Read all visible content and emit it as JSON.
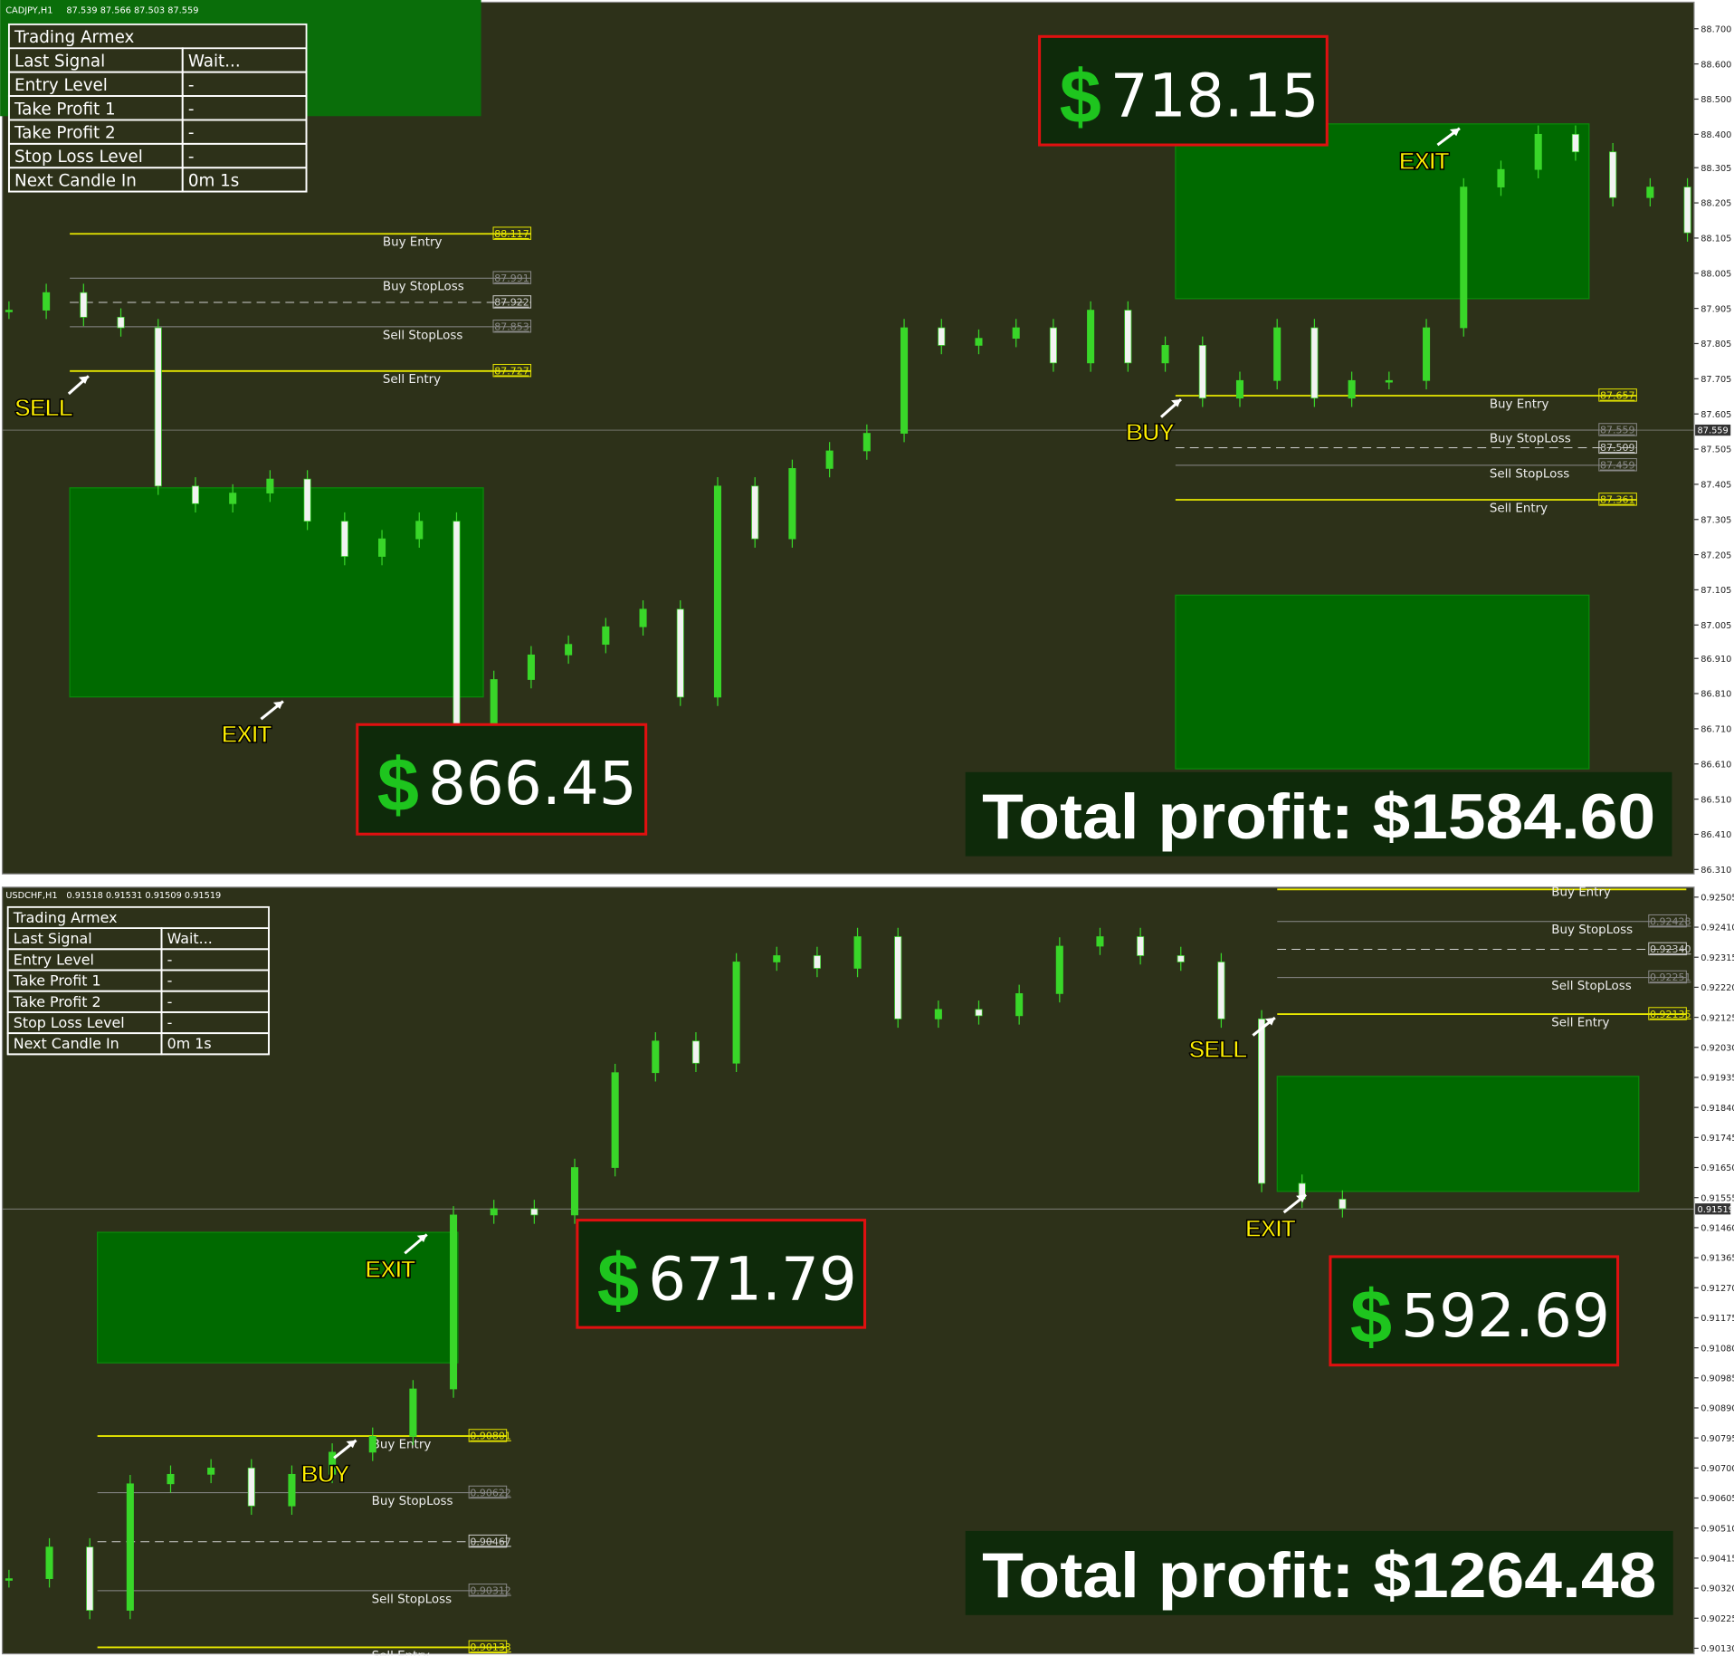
{
  "panels": [
    {
      "header": "CADJPY,H1",
      "ohlc": "87.539 87.566 87.503 87.559",
      "table": {
        "title": "Trading Armex",
        "rows": [
          [
            "Last Signal",
            "Wait..."
          ],
          [
            "Entry Level",
            "-"
          ],
          [
            "Take Profit 1",
            "-"
          ],
          [
            "Take Profit 2",
            "-"
          ],
          [
            "Stop Loss Level",
            "-"
          ],
          [
            "Next Candle In",
            "0m 1s"
          ]
        ]
      },
      "ylim": [
        86.31,
        88.7
      ],
      "price_axis": [
        "88.700",
        "88.600",
        "88.500",
        "88.400",
        "88.305",
        "88.205",
        "88.105",
        "88.005",
        "87.905",
        "87.805",
        "87.705",
        "87.605",
        "87.505",
        "87.405",
        "87.305",
        "87.205",
        "87.105",
        "87.005",
        "86.910",
        "86.810",
        "86.710",
        "86.610",
        "86.510",
        "86.410",
        "86.310"
      ],
      "current_price": "87.559",
      "level_groups": [
        [
          {
            "name": "Buy Entry",
            "price": "88.117",
            "kind": "entry"
          },
          {
            "name": "Buy StopLoss",
            "price": "87.991",
            "kind": "stoploss"
          },
          {
            "price": "87.922",
            "kind": "mid"
          },
          {
            "name": "Sell StopLoss",
            "price": "87.853",
            "kind": "stoploss"
          },
          {
            "name": "Sell Entry",
            "price": "87.727",
            "kind": "entry"
          }
        ],
        [
          {
            "name": "Buy Entry",
            "price": "87.657",
            "kind": "entry"
          },
          {
            "name": "Buy StopLoss",
            "price": "87.559",
            "kind": "stoploss"
          },
          {
            "price": "87.509",
            "kind": "mid"
          },
          {
            "name": "Sell StopLoss",
            "price": "87.459",
            "kind": "stoploss"
          },
          {
            "name": "Sell Entry",
            "price": "87.361",
            "kind": "entry"
          }
        ]
      ],
      "signals": [
        "SELL",
        "EXIT",
        "BUY",
        "EXIT"
      ],
      "currency": "$",
      "profits": [
        "718.15",
        "866.45"
      ],
      "total": "Total profit: $1584.60",
      "closes": [
        87.9,
        87.95,
        87.88,
        87.85,
        87.4,
        87.35,
        87.38,
        87.42,
        87.3,
        87.2,
        87.25,
        87.3,
        86.6,
        86.85,
        86.92,
        86.95,
        87.0,
        87.05,
        86.8,
        87.4,
        87.25,
        87.45,
        87.5,
        87.55,
        87.85,
        87.8,
        87.82,
        87.85,
        87.75,
        87.9,
        87.75,
        87.8,
        87.65,
        87.7,
        87.85,
        87.65,
        87.7,
        87.7,
        87.85,
        88.25,
        88.3,
        88.4,
        88.35,
        88.22,
        88.25,
        88.12
      ]
    },
    {
      "header": "USDCHF,H1",
      "ohlc": "0.91518 0.91531 0.91509 0.91519",
      "table": {
        "title": "Trading Armex",
        "rows": [
          [
            "Last Signal",
            "Wait..."
          ],
          [
            "Entry Level",
            "-"
          ],
          [
            "Take Profit 1",
            "-"
          ],
          [
            "Take Profit 2",
            "-"
          ],
          [
            "Stop Loss Level",
            "-"
          ],
          [
            "Next Candle In",
            "0m 1s"
          ]
        ]
      },
      "ylim": [
        0.9013,
        0.92505
      ],
      "price_axis": [
        "0.92505",
        "0.92410",
        "0.92315",
        "0.92220",
        "0.92125",
        "0.92030",
        "0.91935",
        "0.91840",
        "0.91745",
        "0.91650",
        "0.91555",
        "0.91460",
        "0.91365",
        "0.91270",
        "0.91175",
        "0.91080",
        "0.90985",
        "0.90890",
        "0.90795",
        "0.90700",
        "0.90605",
        "0.90510",
        "0.90415",
        "0.90320",
        "0.90225",
        "0.90130"
      ],
      "current_price": "0.91519",
      "level_groups": [
        [
          {
            "name": "Buy Entry",
            "price": "0.90801",
            "kind": "entry"
          },
          {
            "name": "Buy StopLoss",
            "price": "0.90622",
            "kind": "stoploss"
          },
          {
            "price": "0.90467",
            "kind": "mid"
          },
          {
            "name": "Sell StopLoss",
            "price": "0.90312",
            "kind": "stoploss"
          },
          {
            "name": "Sell Entry",
            "price": "0.90133",
            "kind": "entry"
          }
        ],
        [
          {
            "name": "Buy Entry",
            "kind": "entry"
          },
          {
            "name": "Buy StopLoss",
            "price": "0.92428",
            "kind": "stoploss"
          },
          {
            "price": "0.92340",
            "kind": "mid"
          },
          {
            "name": "Sell StopLoss",
            "price": "0.92251",
            "kind": "stoploss"
          },
          {
            "name": "Sell Entry",
            "price": "0.92135",
            "kind": "entry"
          }
        ]
      ],
      "signals": [
        "EXIT",
        "BUY",
        "SELL",
        "EXIT"
      ],
      "currency": "$",
      "profits": [
        "671.79",
        "592.69"
      ],
      "total": "Total profit: $1264.48",
      "closes": [
        0.9035,
        0.9045,
        0.9025,
        0.9065,
        0.9068,
        0.907,
        0.9058,
        0.9068,
        0.9075,
        0.908,
        0.9095,
        0.915,
        0.9152,
        0.915,
        0.9165,
        0.9195,
        0.9205,
        0.9198,
        0.923,
        0.9232,
        0.9228,
        0.9238,
        0.9212,
        0.9215,
        0.9213,
        0.922,
        0.9235,
        0.9238,
        0.9232,
        0.923,
        0.9212,
        0.916,
        0.9155,
        0.9152
      ]
    }
  ]
}
